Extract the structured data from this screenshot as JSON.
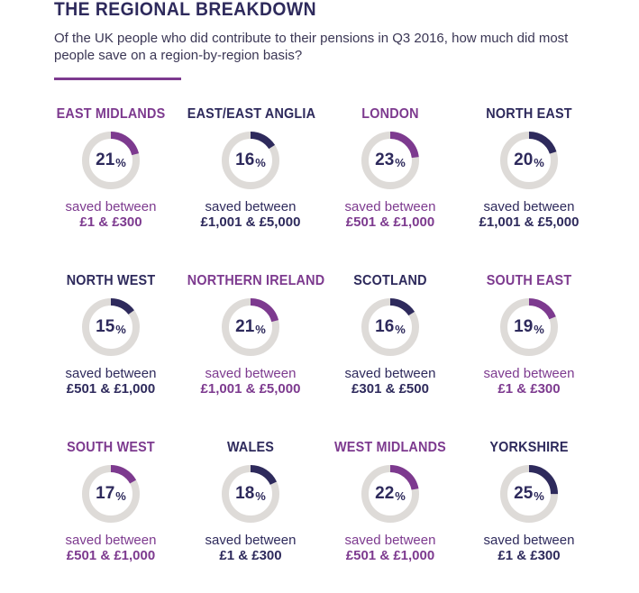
{
  "header": {
    "title": "THE REGIONAL BREAKDOWN",
    "subtitle": "Of the UK people who did contribute to their pensions in Q3 2016, how much did most people save on a region-by-region basis?"
  },
  "colors": {
    "purple": "#7d3a8f",
    "navy": "#2e2a5c",
    "track": "#dedbd8"
  },
  "chart_data": {
    "type": "donut",
    "series": [
      {
        "region": "EAST MIDLANDS",
        "value": 21,
        "value_label": "21",
        "unit": "%",
        "saved_label": "saved between",
        "amount": "£1 & £300",
        "accent": "purple"
      },
      {
        "region": "EAST/EAST ANGLIA",
        "value": 16,
        "value_label": "16",
        "unit": "%",
        "saved_label": "saved between",
        "amount": "£1,001 & £5,000",
        "accent": "navy"
      },
      {
        "region": "LONDON",
        "value": 23,
        "value_label": "23",
        "unit": "%",
        "saved_label": "saved between",
        "amount": "£501 & £1,000",
        "accent": "purple"
      },
      {
        "region": "NORTH EAST",
        "value": 20,
        "value_label": "20",
        "unit": "%",
        "saved_label": "saved between",
        "amount": "£1,001 & £5,000",
        "accent": "navy"
      },
      {
        "region": "NORTH WEST",
        "value": 15,
        "value_label": "15",
        "unit": "%",
        "saved_label": "saved between",
        "amount": "£501 & £1,000",
        "accent": "navy"
      },
      {
        "region": "NORTHERN IRELAND",
        "value": 21,
        "value_label": "21",
        "unit": "%",
        "saved_label": "saved between",
        "amount": "£1,001 & £5,000",
        "accent": "purple"
      },
      {
        "region": "SCOTLAND",
        "value": 16,
        "value_label": "16",
        "unit": "%",
        "saved_label": "saved between",
        "amount": "£301 & £500",
        "accent": "navy"
      },
      {
        "region": "SOUTH EAST",
        "value": 19,
        "value_label": "19",
        "unit": "%",
        "saved_label": "saved between",
        "amount": "£1 & £300",
        "accent": "purple"
      },
      {
        "region": "SOUTH WEST",
        "value": 17,
        "value_label": "17",
        "unit": "%",
        "saved_label": "saved between",
        "amount": "£501 & £1,000",
        "accent": "purple"
      },
      {
        "region": "WALES",
        "value": 18,
        "value_label": "18",
        "unit": "%",
        "saved_label": "saved between",
        "amount": "£1 & £300",
        "accent": "navy"
      },
      {
        "region": "WEST MIDLANDS",
        "value": 22,
        "value_label": "22",
        "unit": "%",
        "saved_label": "saved between",
        "amount": "£501 & £1,000",
        "accent": "purple"
      },
      {
        "region": "YORKSHIRE",
        "value": 25,
        "value_label": "25",
        "unit": "%",
        "saved_label": "saved between",
        "amount": "£1 & £300",
        "accent": "navy"
      }
    ]
  }
}
